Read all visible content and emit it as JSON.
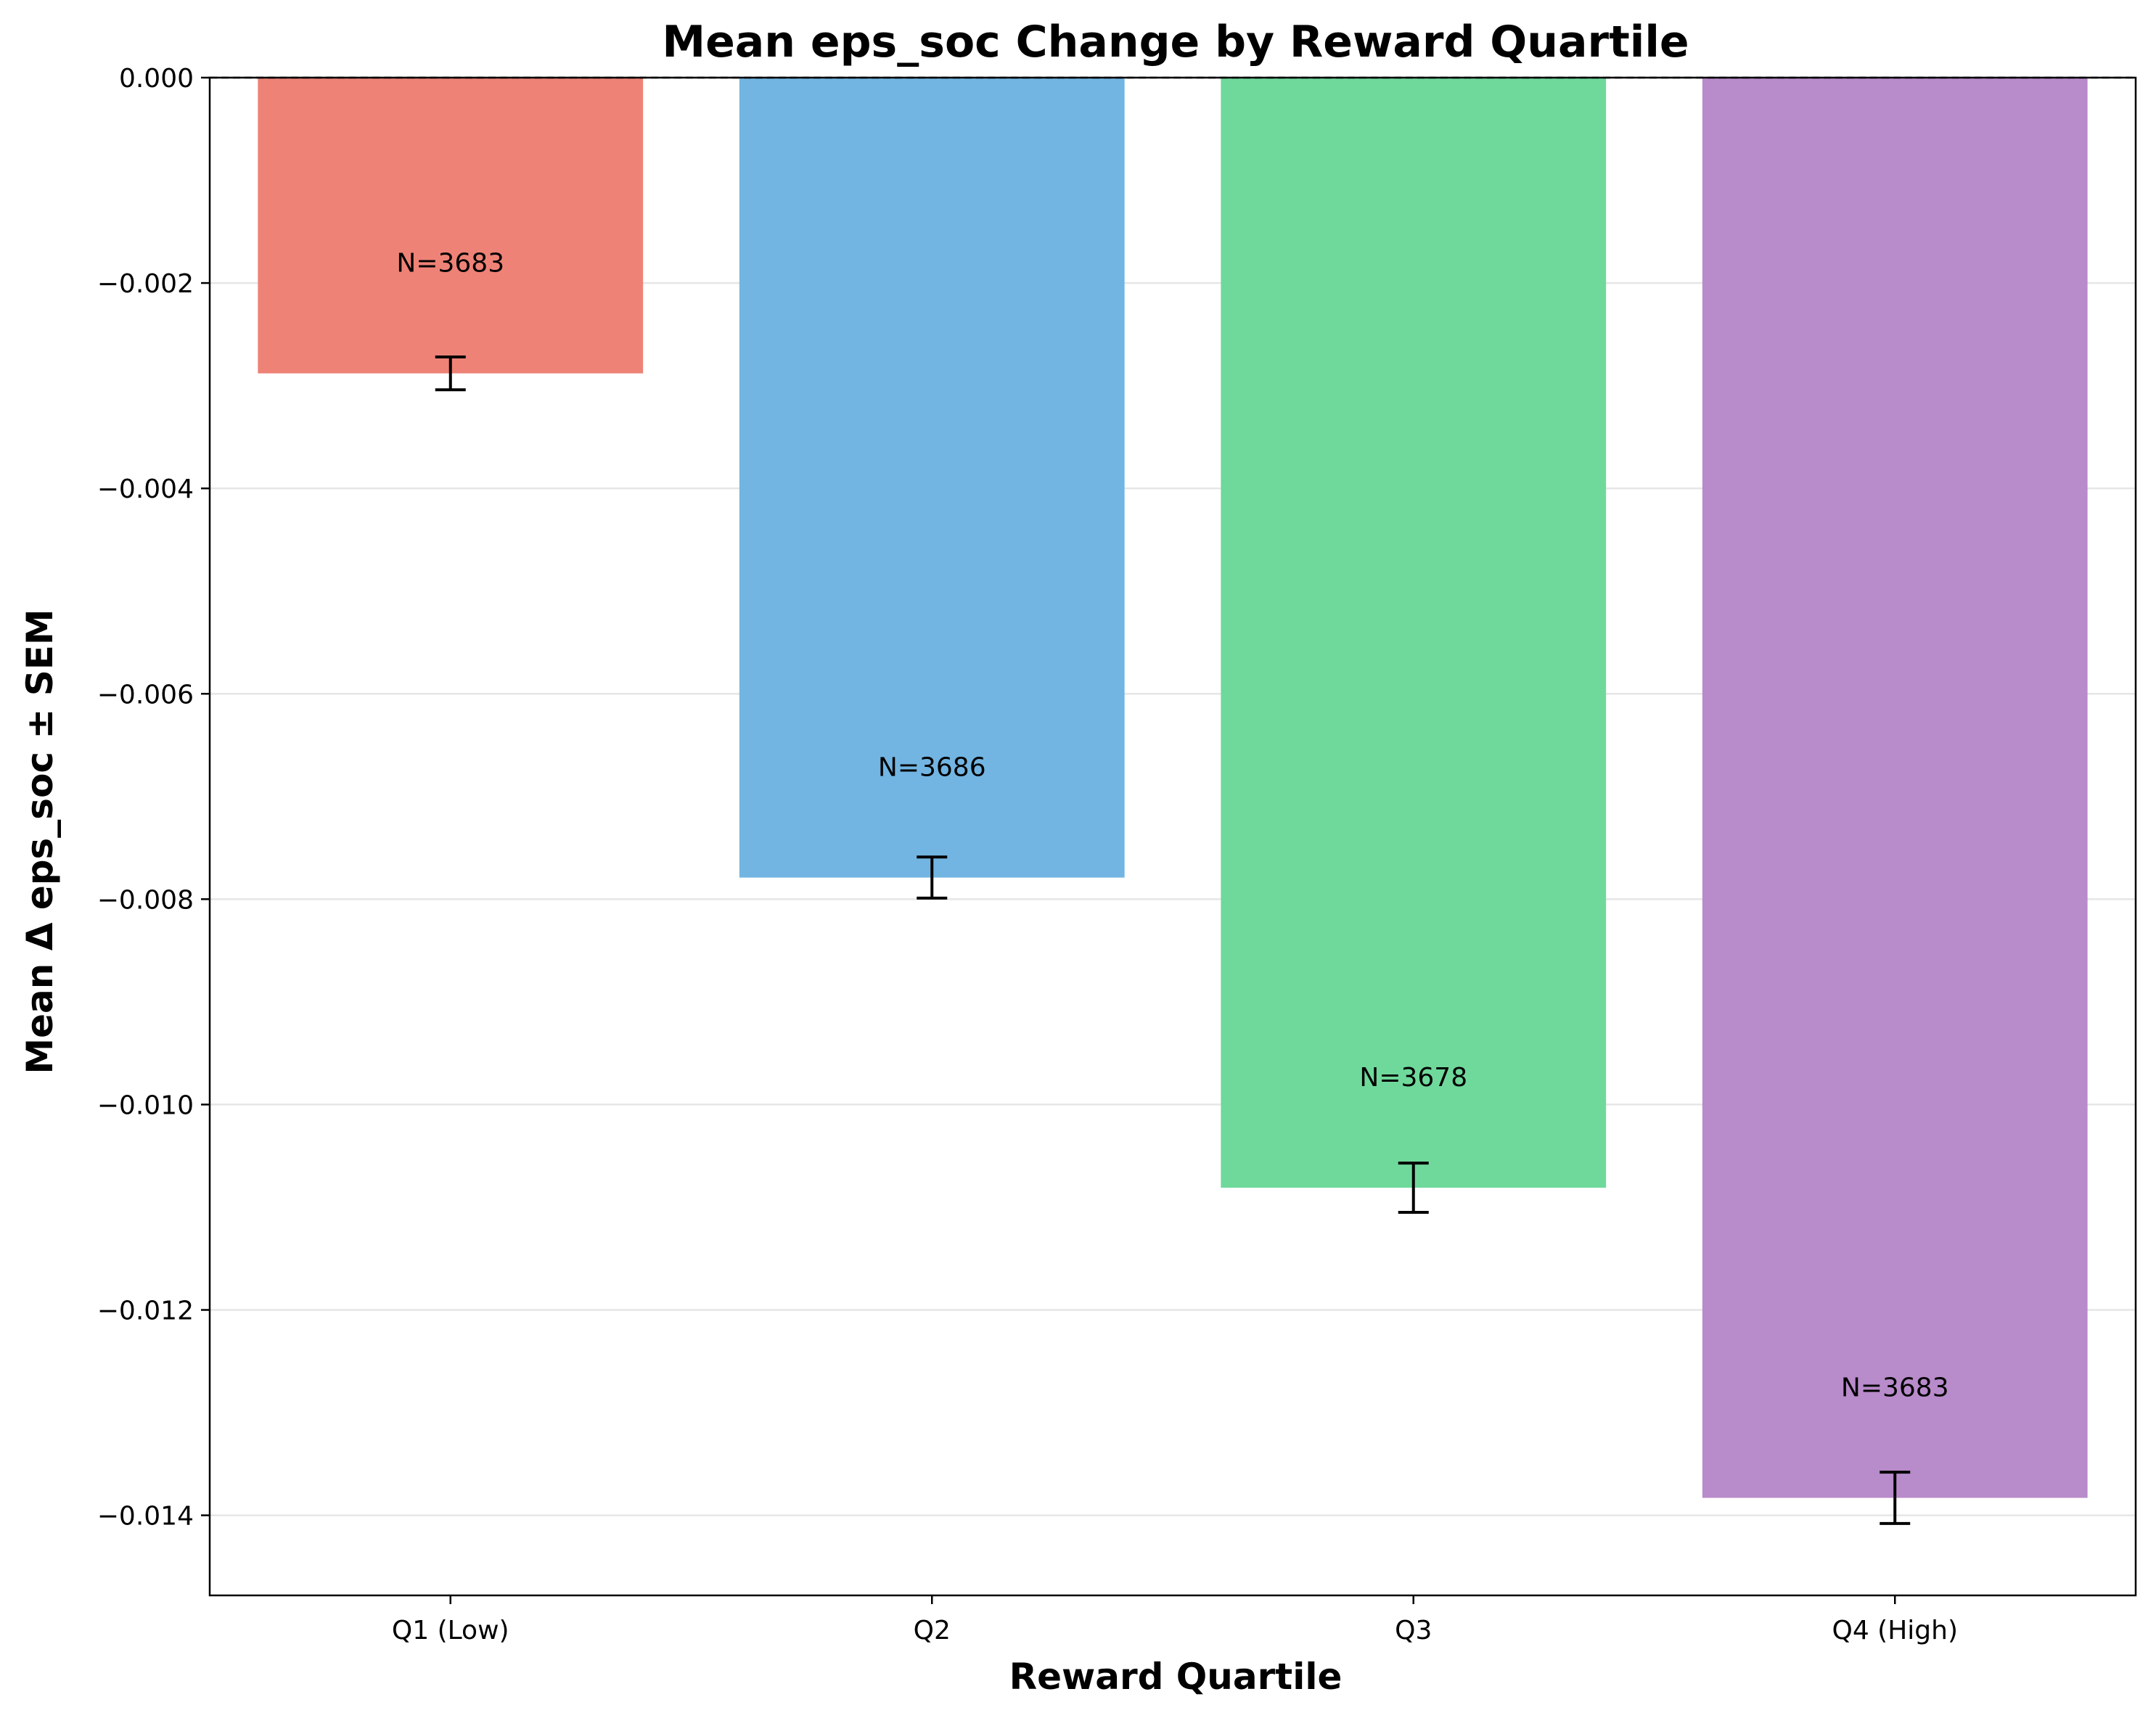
{
  "chart_data": {
    "type": "bar",
    "title": "Mean eps_soc Change by Reward Quartile",
    "xlabel": "Reward Quartile",
    "ylabel": "Mean Δ eps_soc ± SEM",
    "categories": [
      "Q1 (Low)",
      "Q2",
      "Q3",
      "Q4 (High)"
    ],
    "values": [
      -0.00288,
      -0.00779,
      -0.01081,
      -0.01383
    ],
    "sem": [
      0.00016,
      0.0002,
      0.00024,
      0.00025
    ],
    "annotations": [
      "N=3683",
      "N=3686",
      "N=3678",
      "N=3683"
    ],
    "colors": [
      "#ee8276",
      "#72b5e2",
      "#6fd99b",
      "#b88bca"
    ],
    "ylim": [
      -0.01478,
      0.0
    ],
    "yticks": [
      0.0,
      -0.002,
      -0.004,
      -0.006,
      -0.008,
      -0.01,
      -0.012,
      -0.014
    ],
    "ytick_labels": [
      "0.000",
      "−0.002",
      "−0.004",
      "−0.006",
      "−0.008",
      "−0.010",
      "−0.012",
      "−0.014"
    ],
    "grid": "horizontal",
    "reference_line": 0.0
  }
}
